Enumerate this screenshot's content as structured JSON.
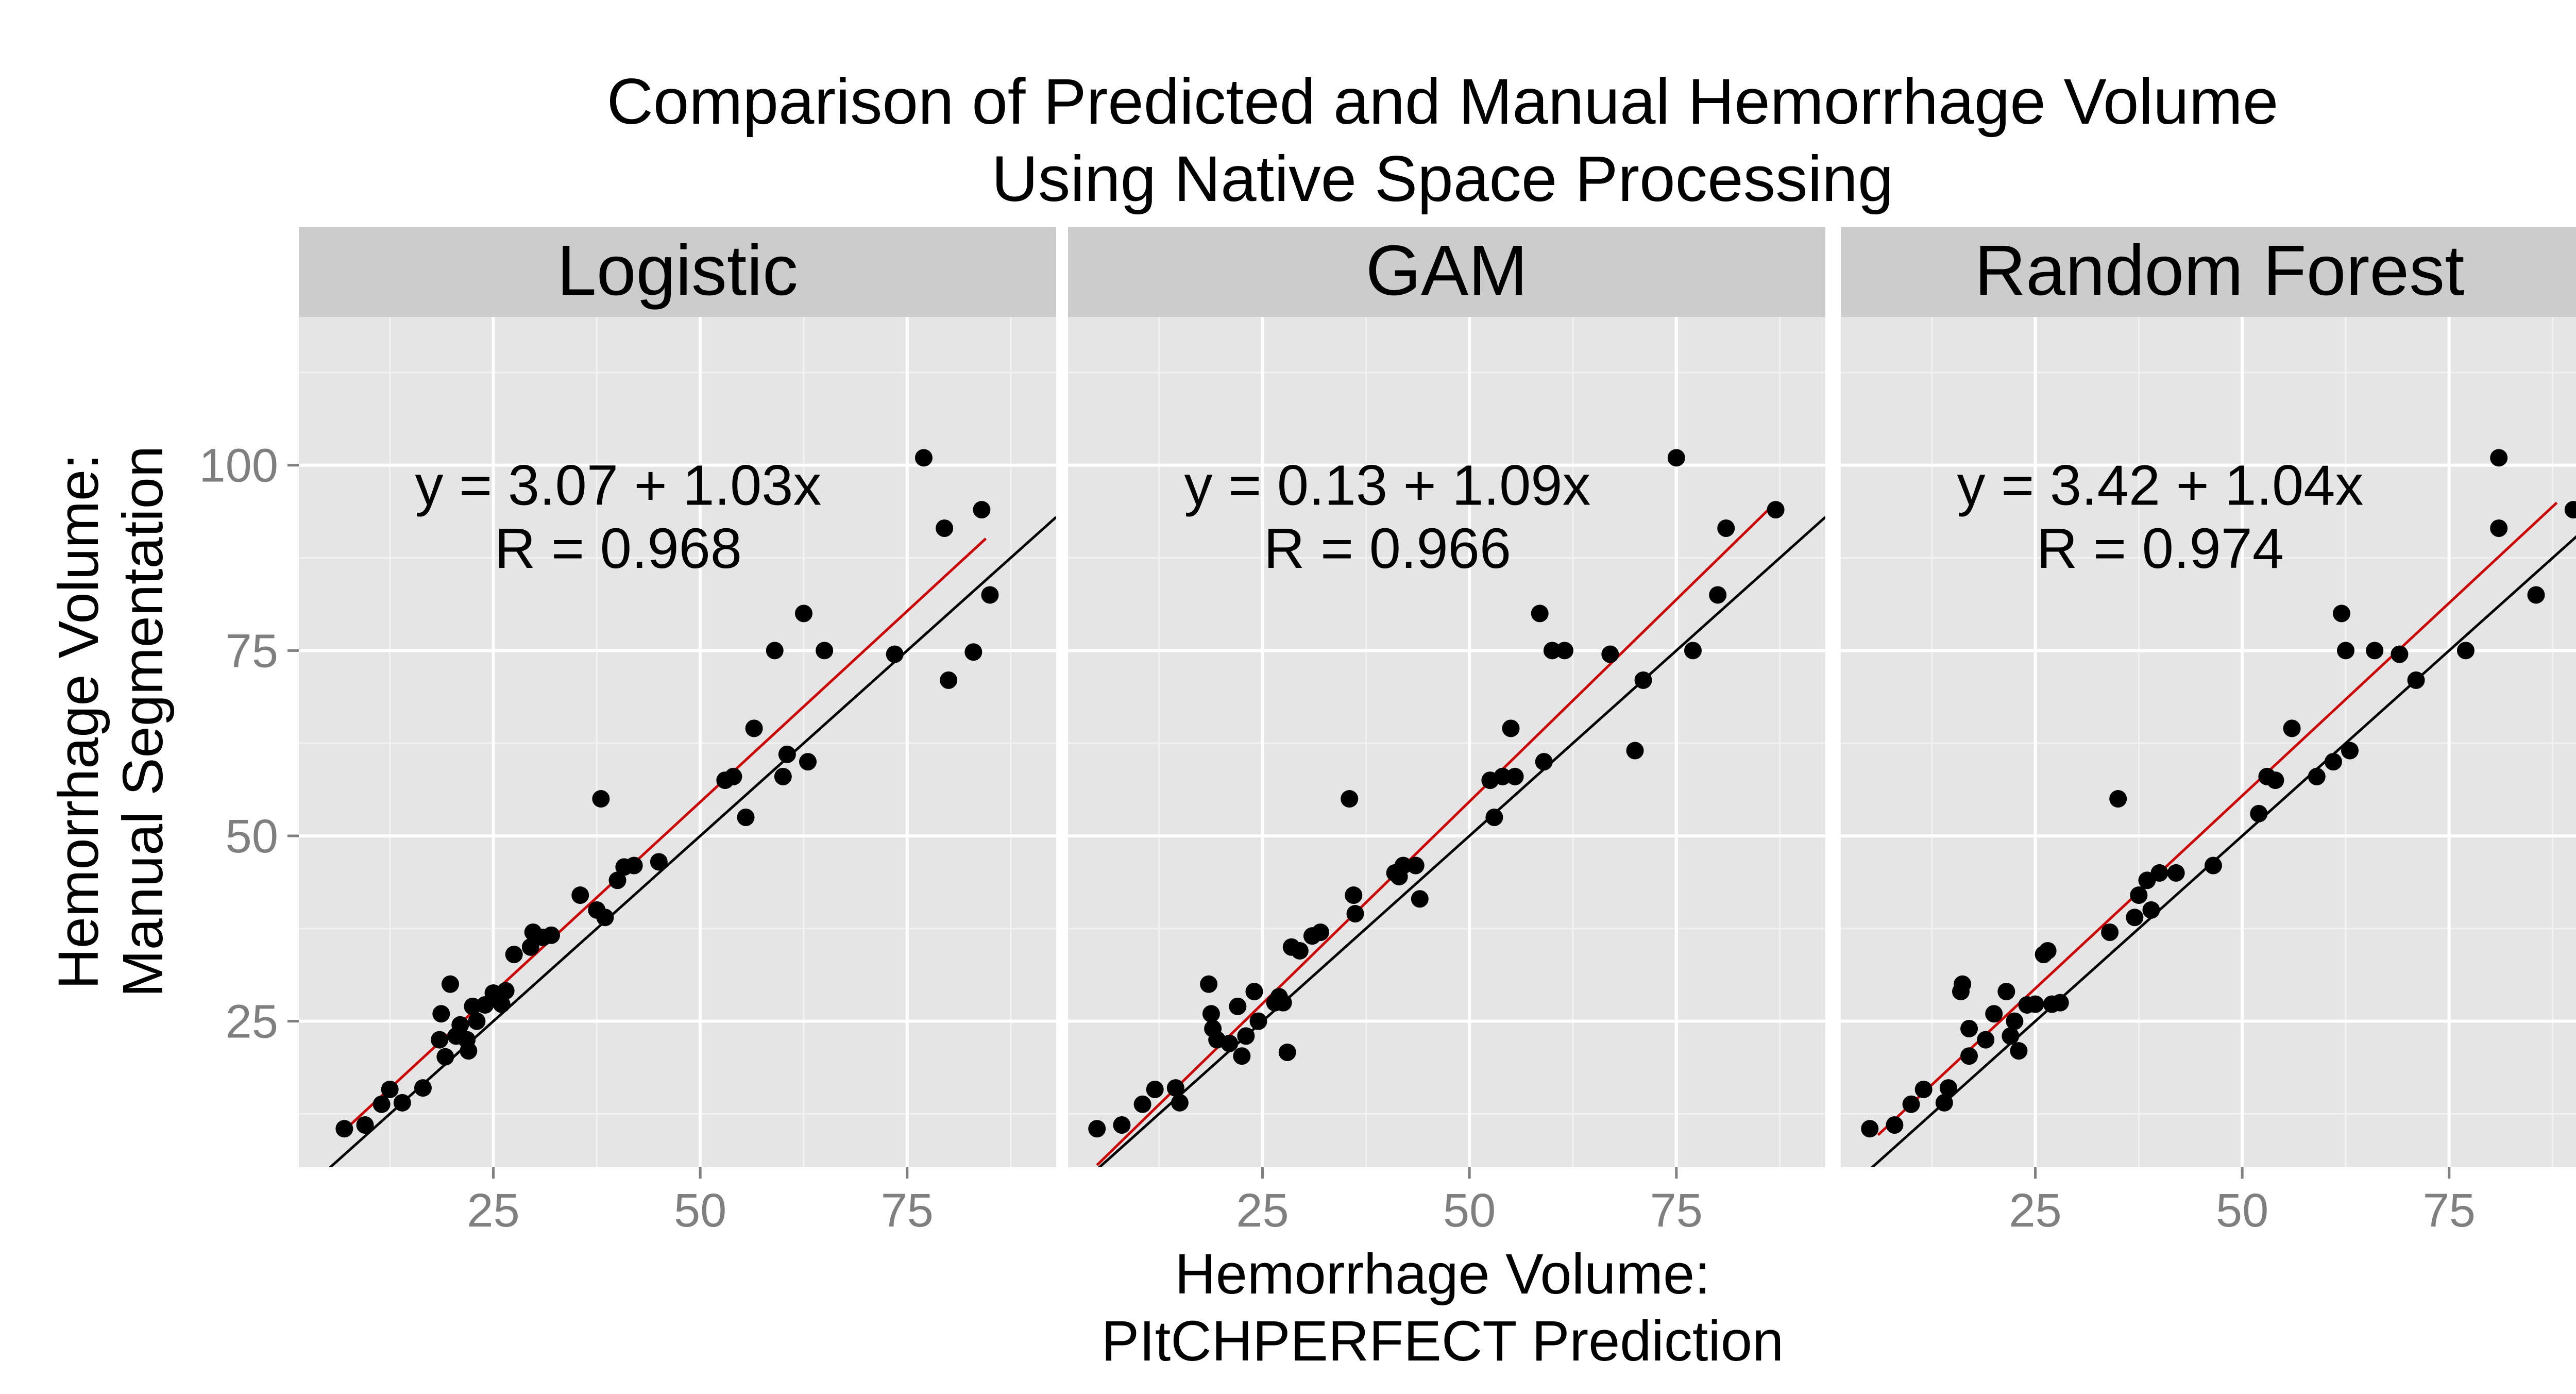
{
  "figure": {
    "title_line1": "Comparison of Predicted and Manual Hemorrhage Volume",
    "title_line2": "Using Native Space Processing",
    "xlabel_line1": "Hemorrhage Volume:",
    "xlabel_line2": "PItCHPERFECT Prediction",
    "ylabel_line1": "Hemorrhage Volume:",
    "ylabel_line2": "Manual Segmentation"
  },
  "colors": {
    "panel_background": "#e5e5e5",
    "strip_background": "#cccccc",
    "grid_major": "#ffffff",
    "grid_minor": "#f2f2f2",
    "points": "#000000",
    "fit_line": "#cc0000",
    "identity_line": "#000000",
    "tick_label": "#7f7f7f"
  },
  "chart_data": [
    {
      "type": "scatter",
      "facet": "Logistic",
      "annotation_eq": "y = 3.07 + 1.03x",
      "annotation_r": "R = 0.968",
      "xlim": [
        1.5,
        93
      ],
      "ylim": [
        5.3,
        120
      ],
      "xticks": [
        25,
        50,
        75
      ],
      "xtick_labels": [
        "25",
        "50",
        "75"
      ],
      "yticks": [
        25,
        50,
        75,
        100
      ],
      "ytick_labels": [
        "25",
        "50",
        "75",
        "100"
      ],
      "fit": {
        "intercept": 3.07,
        "slope": 1.03,
        "x_range": [
          7,
          84.5
        ]
      },
      "identity": {
        "intercept": 0,
        "slope": 1
      },
      "points": [
        [
          7,
          10.5
        ],
        [
          9.5,
          11
        ],
        [
          11.5,
          13.8
        ],
        [
          12.5,
          15.8
        ],
        [
          14,
          14
        ],
        [
          16.5,
          16
        ],
        [
          18.5,
          22.5
        ],
        [
          18.7,
          26
        ],
        [
          19.2,
          20.2
        ],
        [
          19.8,
          30
        ],
        [
          20.5,
          23
        ],
        [
          21,
          24.5
        ],
        [
          21.8,
          22.5
        ],
        [
          22,
          21
        ],
        [
          22.5,
          27
        ],
        [
          23,
          25
        ],
        [
          24,
          27.2
        ],
        [
          25,
          28.8
        ],
        [
          26,
          27.3
        ],
        [
          26.5,
          29.1
        ],
        [
          27.5,
          34
        ],
        [
          29.5,
          35
        ],
        [
          29.8,
          37
        ],
        [
          31,
          36.3
        ],
        [
          32,
          36.6
        ],
        [
          35.5,
          42
        ],
        [
          37.5,
          40
        ],
        [
          38,
          55
        ],
        [
          38.5,
          39
        ],
        [
          40,
          44
        ],
        [
          40.8,
          45.8
        ],
        [
          42,
          46
        ],
        [
          45,
          46.5
        ],
        [
          53,
          57.5
        ],
        [
          54,
          58
        ],
        [
          55.5,
          52.5
        ],
        [
          56.5,
          64.5
        ],
        [
          59,
          75
        ],
        [
          60,
          58
        ],
        [
          60.5,
          61
        ],
        [
          62.5,
          80
        ],
        [
          63,
          60
        ],
        [
          65,
          75
        ],
        [
          73.5,
          74.5
        ],
        [
          77,
          101
        ],
        [
          79.5,
          91.5
        ],
        [
          80,
          71
        ],
        [
          83,
          74.8
        ],
        [
          84,
          94
        ],
        [
          85,
          82.5
        ]
      ]
    },
    {
      "type": "scatter",
      "facet": "GAM",
      "annotation_eq": "y = 0.13 + 1.09x",
      "annotation_r": "R = 0.966",
      "xlim": [
        1.5,
        93
      ],
      "ylim": [
        5.3,
        120
      ],
      "xticks": [
        25,
        50,
        75
      ],
      "xtick_labels": [
        "25",
        "50",
        "75"
      ],
      "yticks": [
        25,
        50,
        75,
        100
      ],
      "ytick_labels": [
        "25",
        "50",
        "75",
        "100"
      ],
      "fit": {
        "intercept": 0.13,
        "slope": 1.09,
        "x_range": [
          5,
          87
        ]
      },
      "identity": {
        "intercept": 0,
        "slope": 1
      },
      "points": [
        [
          5,
          10.5
        ],
        [
          8,
          11
        ],
        [
          10.5,
          13.8
        ],
        [
          12,
          15.8
        ],
        [
          14.5,
          16
        ],
        [
          15,
          14
        ],
        [
          18.5,
          30
        ],
        [
          18.8,
          26
        ],
        [
          19,
          24
        ],
        [
          19.5,
          22.5
        ],
        [
          21,
          22
        ],
        [
          22,
          27
        ],
        [
          22.5,
          20.3
        ],
        [
          23,
          23
        ],
        [
          24,
          29
        ],
        [
          24.5,
          25
        ],
        [
          26.5,
          27.5
        ],
        [
          27,
          28.3
        ],
        [
          27.5,
          27.5
        ],
        [
          28,
          20.8
        ],
        [
          28.5,
          35
        ],
        [
          29.5,
          34.5
        ],
        [
          31,
          36.5
        ],
        [
          32,
          37
        ],
        [
          35.5,
          55
        ],
        [
          36,
          42
        ],
        [
          36.2,
          39.5
        ],
        [
          41,
          45
        ],
        [
          41.5,
          44.5
        ],
        [
          42,
          46
        ],
        [
          43.5,
          46
        ],
        [
          44,
          41.5
        ],
        [
          52.5,
          57.5
        ],
        [
          53,
          52.5
        ],
        [
          54,
          58
        ],
        [
          55,
          64.5
        ],
        [
          55.5,
          58
        ],
        [
          58.5,
          80
        ],
        [
          59,
          60
        ],
        [
          60,
          75
        ],
        [
          61.5,
          75
        ],
        [
          67,
          74.5
        ],
        [
          70,
          61.5
        ],
        [
          71,
          71
        ],
        [
          75,
          101
        ],
        [
          77,
          75
        ],
        [
          80,
          82.5
        ],
        [
          81,
          91.5
        ],
        [
          87,
          94
        ]
      ]
    },
    {
      "type": "scatter",
      "facet": "Random Forest",
      "annotation_eq": "y = 3.42 + 1.04x",
      "annotation_r": "R = 0.974",
      "xlim": [
        1.5,
        93
      ],
      "ylim": [
        5.3,
        120
      ],
      "xticks": [
        25,
        50,
        75
      ],
      "xtick_labels": [
        "25",
        "50",
        "75"
      ],
      "yticks": [
        25,
        50,
        75,
        100
      ],
      "ytick_labels": [
        "25",
        "50",
        "75",
        "100"
      ],
      "fit": {
        "intercept": 3.42,
        "slope": 1.04,
        "x_range": [
          6,
          88
        ]
      },
      "identity": {
        "intercept": 0,
        "slope": 1
      },
      "points": [
        [
          5,
          10.5
        ],
        [
          8,
          11
        ],
        [
          10,
          13.8
        ],
        [
          11.5,
          15.8
        ],
        [
          14,
          14
        ],
        [
          14.5,
          16
        ],
        [
          16,
          29
        ],
        [
          16.2,
          30
        ],
        [
          17,
          24
        ],
        [
          17,
          20.3
        ],
        [
          19,
          22.5
        ],
        [
          20,
          26
        ],
        [
          21.5,
          29
        ],
        [
          22,
          23
        ],
        [
          22.5,
          25
        ],
        [
          23,
          21
        ],
        [
          24,
          27.2
        ],
        [
          25,
          27.3
        ],
        [
          26,
          34
        ],
        [
          26.5,
          34.5
        ],
        [
          27,
          27.3
        ],
        [
          28,
          27.5
        ],
        [
          34,
          37
        ],
        [
          35,
          55
        ],
        [
          37,
          39
        ],
        [
          37.5,
          42
        ],
        [
          38.5,
          44
        ],
        [
          39,
          40
        ],
        [
          40,
          45
        ],
        [
          42,
          45
        ],
        [
          46.5,
          46
        ],
        [
          52,
          53
        ],
        [
          53,
          58
        ],
        [
          54,
          57.5
        ],
        [
          56,
          64.5
        ],
        [
          59,
          58
        ],
        [
          61,
          60
        ],
        [
          62,
          80
        ],
        [
          62.5,
          75
        ],
        [
          63,
          61.5
        ],
        [
          66,
          75
        ],
        [
          69,
          74.5
        ],
        [
          71,
          71
        ],
        [
          77,
          75
        ],
        [
          81,
          101
        ],
        [
          81,
          91.5
        ],
        [
          85.5,
          82.5
        ],
        [
          90,
          94
        ]
      ]
    }
  ]
}
